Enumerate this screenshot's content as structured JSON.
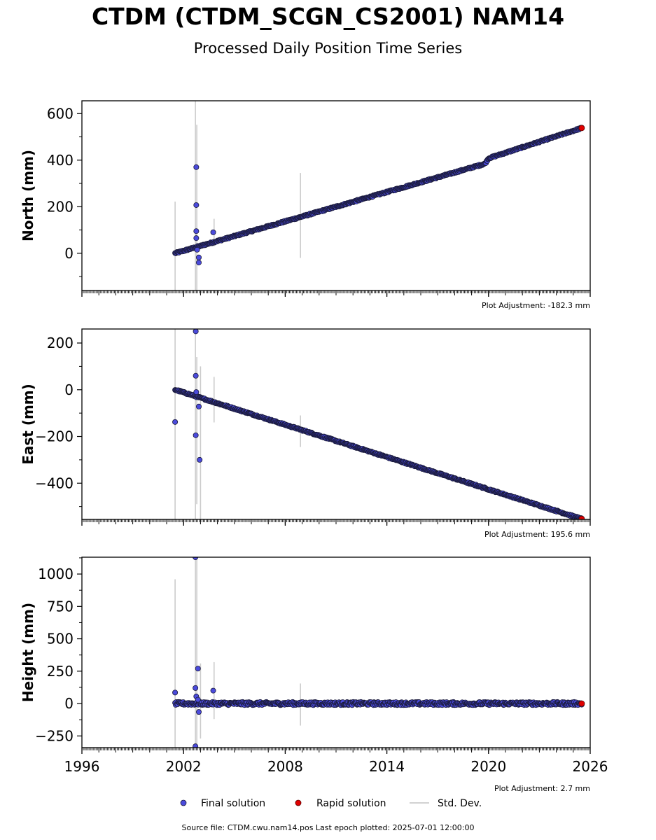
{
  "title": "CTDM (CTDM_SCGN_CS2001) NAM14",
  "subtitle": "Processed Daily Position Time Series",
  "source_text": "Source file: CTDM.cwu.nam14.pos  Last epoch plotted: 2025-07-01 12:00:00",
  "colors": {
    "final": "#4b4bdc",
    "final_edge": "#1a1a3a",
    "rapid": "#e00000",
    "stddev": "#cccccc"
  },
  "legend": {
    "position": "bottom-center",
    "final_label": "Final solution",
    "rapid_label": "Rapid solution",
    "stddev_label": "Std. Dev."
  },
  "chart_data": [
    {
      "type": "scatter",
      "ylabel": "North (mm)",
      "adjustment": "Plot Adjustment: -182.3 mm",
      "xlim": [
        1996,
        2026
      ],
      "ylim": [
        -160,
        655
      ],
      "yticks": [
        0,
        200,
        400,
        600
      ],
      "xticks": [
        1996,
        2002,
        2008,
        2014,
        2020,
        2026
      ],
      "show_xticklabels": false,
      "trend": [
        {
          "x": 2001.5,
          "y": 0
        },
        {
          "x": 2019.8,
          "y": 385
        },
        {
          "x": 2020.0,
          "y": 408
        },
        {
          "x": 2025.5,
          "y": 538
        }
      ],
      "outliers": [
        {
          "x": 2002.75,
          "y": 370
        },
        {
          "x": 2002.75,
          "y": 207
        },
        {
          "x": 2002.75,
          "y": 95
        },
        {
          "x": 2002.75,
          "y": 65
        },
        {
          "x": 2002.8,
          "y": 15
        },
        {
          "x": 2002.9,
          "y": -18
        },
        {
          "x": 2002.9,
          "y": -40
        },
        {
          "x": 2003.75,
          "y": 90
        }
      ],
      "errorbars": [
        {
          "x": 2001.5,
          "lo": -160,
          "hi": 222
        },
        {
          "x": 2002.7,
          "lo": -160,
          "hi": 655
        },
        {
          "x": 2002.78,
          "lo": -160,
          "hi": 552
        },
        {
          "x": 2003.8,
          "lo": 30,
          "hi": 148
        },
        {
          "x": 2008.9,
          "lo": -20,
          "hi": 345
        }
      ],
      "rapid": [
        {
          "x": 2025.5,
          "y": 538
        }
      ],
      "scatter_amplitude": 3
    },
    {
      "type": "scatter",
      "ylabel": "East (mm)",
      "adjustment": "Plot Adjustment: 195.6 mm",
      "xlim": [
        1996,
        2026
      ],
      "ylim": [
        -555,
        260
      ],
      "yticks": [
        -400,
        -200,
        0,
        200
      ],
      "xticks": [
        1996,
        2002,
        2008,
        2014,
        2020,
        2026
      ],
      "show_xticklabels": false,
      "trend": [
        {
          "x": 2001.5,
          "y": 0
        },
        {
          "x": 2025.5,
          "y": -553
        }
      ],
      "outliers": [
        {
          "x": 2001.5,
          "y": -138
        },
        {
          "x": 2002.72,
          "y": 250
        },
        {
          "x": 2002.72,
          "y": 60
        },
        {
          "x": 2002.75,
          "y": -10
        },
        {
          "x": 2002.72,
          "y": -195
        },
        {
          "x": 2002.9,
          "y": -72
        },
        {
          "x": 2002.95,
          "y": -300
        }
      ],
      "errorbars": [
        {
          "x": 2001.5,
          "lo": -555,
          "hi": 260
        },
        {
          "x": 2002.7,
          "lo": -555,
          "hi": 260
        },
        {
          "x": 2002.78,
          "lo": -490,
          "hi": 140
        },
        {
          "x": 2003.0,
          "lo": -555,
          "hi": 100
        },
        {
          "x": 2003.8,
          "lo": -140,
          "hi": 55
        },
        {
          "x": 2008.9,
          "lo": -245,
          "hi": -110
        }
      ],
      "rapid": [
        {
          "x": 2025.5,
          "y": -553
        }
      ],
      "scatter_amplitude": 3
    },
    {
      "type": "scatter",
      "ylabel": "Height (mm)",
      "adjustment": "Plot Adjustment: 2.7 mm",
      "xlim": [
        1996,
        2026
      ],
      "ylim": [
        -340,
        1130
      ],
      "yticks": [
        -250,
        0,
        250,
        500,
        750,
        1000
      ],
      "xticks": [
        1996,
        2002,
        2008,
        2014,
        2020,
        2026
      ],
      "show_xticklabels": true,
      "trend": [
        {
          "x": 2001.5,
          "y": 0
        },
        {
          "x": 2025.5,
          "y": 0
        }
      ],
      "outliers": [
        {
          "x": 2001.5,
          "y": 85
        },
        {
          "x": 2002.7,
          "y": 1130
        },
        {
          "x": 2002.7,
          "y": 120
        },
        {
          "x": 2002.75,
          "y": 55
        },
        {
          "x": 2002.85,
          "y": 270
        },
        {
          "x": 2002.85,
          "y": 30
        },
        {
          "x": 2002.9,
          "y": -65
        },
        {
          "x": 2002.7,
          "y": -330
        },
        {
          "x": 2003.75,
          "y": 100
        }
      ],
      "errorbars": [
        {
          "x": 2001.5,
          "lo": -340,
          "hi": 960
        },
        {
          "x": 2002.7,
          "lo": -340,
          "hi": 1130
        },
        {
          "x": 2002.78,
          "lo": -340,
          "hi": 1130
        },
        {
          "x": 2003.0,
          "lo": -270,
          "hi": 310
        },
        {
          "x": 2003.8,
          "lo": -120,
          "hi": 320
        },
        {
          "x": 2008.9,
          "lo": -170,
          "hi": 155
        }
      ],
      "rapid": [
        {
          "x": 2025.5,
          "y": 0
        }
      ],
      "scatter_amplitude": 12
    }
  ]
}
